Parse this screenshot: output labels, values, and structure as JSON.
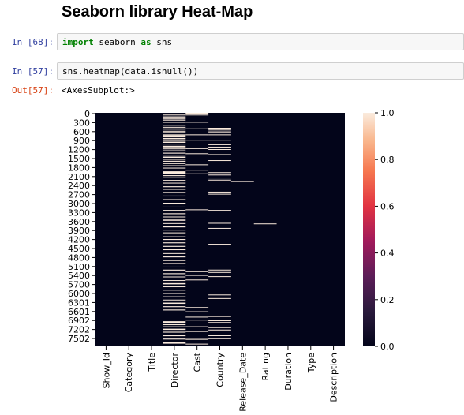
{
  "notebook": {
    "title": "Seaborn library Heat-Map",
    "cells": [
      {
        "prompt": "In [68]:",
        "code_kw1": "import",
        "code_mid": " seaborn ",
        "code_kw2": "as",
        "code_end": " sns"
      },
      {
        "prompt": "In [57]:",
        "code": "sns.heatmap(data.isnull())"
      }
    ],
    "output": {
      "prompt": "Out[57]:",
      "text": "<AxesSubplot:>"
    }
  },
  "chart_data": {
    "type": "heatmap",
    "title": "",
    "y_tick_labels": [
      "0",
      "300",
      "600",
      "900",
      "1200",
      "1500",
      "1800",
      "2100",
      "2400",
      "2700",
      "3000",
      "3300",
      "3600",
      "3900",
      "4200",
      "4500",
      "4800",
      "5100",
      "5400",
      "5700",
      "6000",
      "6301",
      "6601",
      "6902",
      "7202",
      "7502"
    ],
    "x_tick_labels": [
      "Show_Id",
      "Category",
      "Title",
      "Director",
      "Cast",
      "Country",
      "Release_Date",
      "Rating",
      "Duration",
      "Type",
      "Description"
    ],
    "colorbar_ticks": [
      "0.0",
      "0.2",
      "0.4",
      "0.6",
      "0.8",
      "1.0"
    ],
    "colorbar_range": [
      0.0,
      1.0
    ],
    "colormap": "rocket",
    "colors": {
      "null_value": "#faebdd",
      "non_null": "#03051a"
    },
    "n_rows": 7789,
    "null_row_ranges": {
      "Director": [
        [
          60,
          70
        ],
        [
          120,
          130
        ],
        [
          150,
          170
        ],
        [
          190,
          205
        ],
        [
          230,
          250
        ],
        [
          300,
          330
        ],
        [
          400,
          430
        ],
        [
          470,
          490
        ],
        [
          520,
          560
        ],
        [
          600,
          620
        ],
        [
          640,
          680
        ],
        [
          720,
          760
        ],
        [
          790,
          810
        ],
        [
          840,
          880
        ],
        [
          910,
          930
        ],
        [
          960,
          1000
        ],
        [
          1030,
          1050
        ],
        [
          1100,
          1150
        ],
        [
          1190,
          1210
        ],
        [
          1250,
          1290
        ],
        [
          1330,
          1360
        ],
        [
          1400,
          1420
        ],
        [
          1460,
          1500
        ],
        [
          1540,
          1560
        ],
        [
          1600,
          1630
        ],
        [
          1680,
          1700
        ],
        [
          1750,
          1780
        ],
        [
          1830,
          1850
        ],
        [
          1950,
          2050
        ],
        [
          2080,
          2110
        ],
        [
          2150,
          2180
        ],
        [
          2240,
          2260
        ],
        [
          2330,
          2350
        ],
        [
          2450,
          2480
        ],
        [
          2540,
          2560
        ],
        [
          2640,
          2660
        ],
        [
          2760,
          2790
        ],
        [
          2880,
          2900
        ],
        [
          3000,
          3040
        ],
        [
          3130,
          3150
        ],
        [
          3240,
          3270
        ],
        [
          3350,
          3380
        ],
        [
          3460,
          3480
        ],
        [
          3560,
          3600
        ],
        [
          3680,
          3700
        ],
        [
          3780,
          3820
        ],
        [
          3900,
          3920
        ],
        [
          3990,
          4010
        ],
        [
          4120,
          4150
        ],
        [
          4210,
          4240
        ],
        [
          4320,
          4350
        ],
        [
          4440,
          4470
        ],
        [
          4550,
          4580
        ],
        [
          4680,
          4700
        ],
        [
          4790,
          4820
        ],
        [
          4900,
          4940
        ],
        [
          5010,
          5040
        ],
        [
          5130,
          5150
        ],
        [
          5230,
          5260
        ],
        [
          5350,
          5380
        ],
        [
          5460,
          5480
        ],
        [
          5580,
          5600
        ],
        [
          5680,
          5720
        ],
        [
          5790,
          5810
        ],
        [
          5900,
          5930
        ],
        [
          6010,
          6040
        ],
        [
          6120,
          6150
        ],
        [
          6230,
          6250
        ],
        [
          6330,
          6370
        ],
        [
          6450,
          6480
        ],
        [
          6560,
          6590
        ],
        [
          6950,
          7010
        ],
        [
          7050,
          7080
        ],
        [
          7120,
          7150
        ],
        [
          7200,
          7240
        ],
        [
          7300,
          7330
        ],
        [
          7420,
          7450
        ],
        [
          7530,
          7560
        ],
        [
          7640,
          7700
        ]
      ],
      "Cast": [
        [
          0,
          20
        ],
        [
          60,
          80
        ],
        [
          300,
          310
        ],
        [
          520,
          540
        ],
        [
          720,
          730
        ],
        [
          900,
          910
        ],
        [
          1180,
          1190
        ],
        [
          1350,
          1360
        ],
        [
          1720,
          1730
        ],
        [
          1900,
          1920
        ],
        [
          2020,
          2030
        ],
        [
          3220,
          3230
        ],
        [
          5280,
          5310
        ],
        [
          5410,
          5420
        ],
        [
          5560,
          5580
        ],
        [
          6480,
          6500
        ],
        [
          6620,
          6640
        ],
        [
          6800,
          6820
        ],
        [
          6900,
          6910
        ],
        [
          7120,
          7140
        ],
        [
          7280,
          7300
        ],
        [
          7540,
          7570
        ],
        [
          7700,
          7720
        ]
      ],
      "Country": [
        [
          500,
          520
        ],
        [
          560,
          580
        ],
        [
          620,
          650
        ],
        [
          720,
          740
        ],
        [
          900,
          910
        ],
        [
          1050,
          1070
        ],
        [
          1130,
          1150
        ],
        [
          1210,
          1230
        ],
        [
          1380,
          1400
        ],
        [
          1580,
          1600
        ],
        [
          1980,
          2000
        ],
        [
          2060,
          2080
        ],
        [
          2160,
          2170
        ],
        [
          2230,
          2240
        ],
        [
          2630,
          2650
        ],
        [
          2700,
          2710
        ],
        [
          3240,
          3250
        ],
        [
          3670,
          3680
        ],
        [
          3840,
          3850
        ],
        [
          4370,
          4380
        ],
        [
          5230,
          5240
        ],
        [
          5310,
          5330
        ],
        [
          5450,
          5460
        ],
        [
          6060,
          6080
        ],
        [
          6180,
          6200
        ],
        [
          6780,
          6800
        ],
        [
          6920,
          6940
        ],
        [
          6980,
          7000
        ],
        [
          7150,
          7170
        ],
        [
          7230,
          7240
        ],
        [
          7420,
          7440
        ],
        [
          7520,
          7540
        ]
      ],
      "Release_Date": [
        [
          2280,
          2292
        ]
      ],
      "Rating": [
        [
          3690,
          3700
        ]
      ]
    }
  }
}
